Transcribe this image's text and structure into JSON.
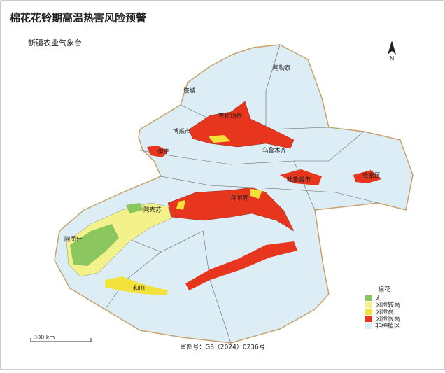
{
  "header": {
    "title": "棉花花铃期高温热害风险预警",
    "subtitle": "新疆农业气象台"
  },
  "legend": {
    "title": "棉花",
    "items": [
      {
        "label": "无",
        "color": "#8cc65e"
      },
      {
        "label": "风险较高",
        "color": "#f3f28a"
      },
      {
        "label": "风险高",
        "color": "#f2e23a"
      },
      {
        "label": "风险很高",
        "color": "#e8361e"
      },
      {
        "label": "非种植区",
        "color": "#dcedf6"
      }
    ]
  },
  "places": [
    {
      "label": "阿勒泰"
    },
    {
      "label": "塔城"
    },
    {
      "label": "克拉玛依"
    },
    {
      "label": "博乐市"
    },
    {
      "label": "伊宁"
    },
    {
      "label": "乌鲁木齐"
    },
    {
      "label": "吐鲁番市"
    },
    {
      "label": "哈密区"
    },
    {
      "label": "库尔勒"
    },
    {
      "label": "阿克苏"
    },
    {
      "label": "阿图什"
    },
    {
      "label": "和田"
    }
  ],
  "scale_label": "300 km",
  "approval": "审图号：GS（2024）0236号"
}
